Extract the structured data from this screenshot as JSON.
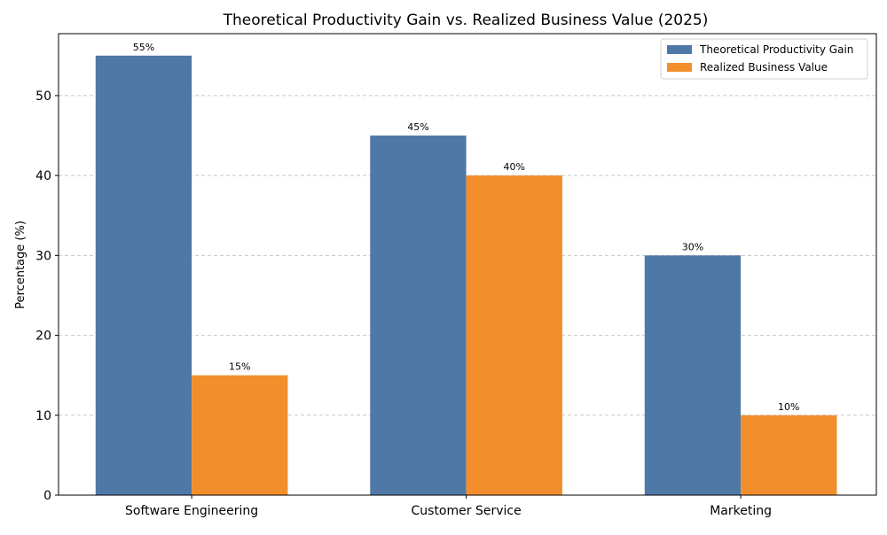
{
  "chart_data": {
    "type": "bar",
    "title": "Theoretical Productivity Gain vs. Realized Business Value (2025)",
    "xlabel": "",
    "ylabel": "Percentage (%)",
    "categories": [
      "Software Engineering",
      "Customer Service",
      "Marketing"
    ],
    "series": [
      {
        "name": "Theoretical Productivity Gain",
        "values": [
          55,
          45,
          30
        ],
        "labels": [
          "55%",
          "45%",
          "30%"
        ],
        "color": "#4e79a7"
      },
      {
        "name": "Realized Business Value",
        "values": [
          15,
          40,
          10
        ],
        "labels": [
          "15%",
          "40%",
          "10%"
        ],
        "color": "#f28e2b"
      }
    ],
    "ylim": [
      0,
      57.75
    ],
    "yticks": [
      0,
      10,
      20,
      30,
      40,
      50
    ],
    "grid": "y-dashed",
    "legend_position": "top-right"
  }
}
